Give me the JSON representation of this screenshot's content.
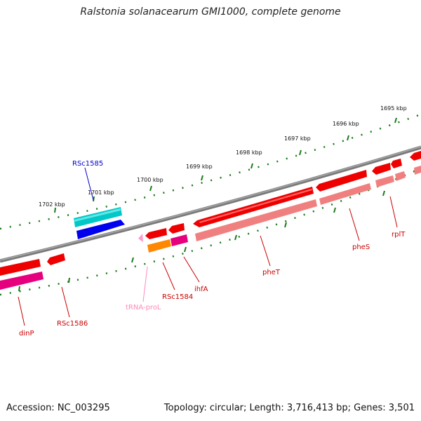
{
  "title": "Ralstonia solanacearum GMI1000, complete genome",
  "footer": {
    "accession": "Accession: NC_003295",
    "summary": "Topology: circular; Length: 3,716,413 bp; Genes: 3,501"
  },
  "ruler": {
    "labels": [
      "1695 kbp",
      "1696 kbp",
      "1697 kbp",
      "1698 kbp",
      "1699 kbp",
      "1700 kbp",
      "1701 kbp",
      "1702 kbp"
    ]
  },
  "genes": [
    "dinP",
    "RSc1586",
    "tRNA-proL",
    "RSc1584",
    "ihfA",
    "pheT",
    "pheS",
    "rplT",
    "RSc1585"
  ],
  "colors": {
    "backbone": "#7a7a7a",
    "tick": "#1a7a1a",
    "cds_red": "#ff0000",
    "cds_pink": "#f08080",
    "cds_magenta": "#e6007e",
    "cds_orange": "#ff8800",
    "cds_cyan": "#00c8c8",
    "cds_blue": "#0000ee",
    "trna_pink": "#ff99cc",
    "label_red": "#cc0000",
    "label_pink": "#ff88bb",
    "label_blue": "#0000cc"
  }
}
